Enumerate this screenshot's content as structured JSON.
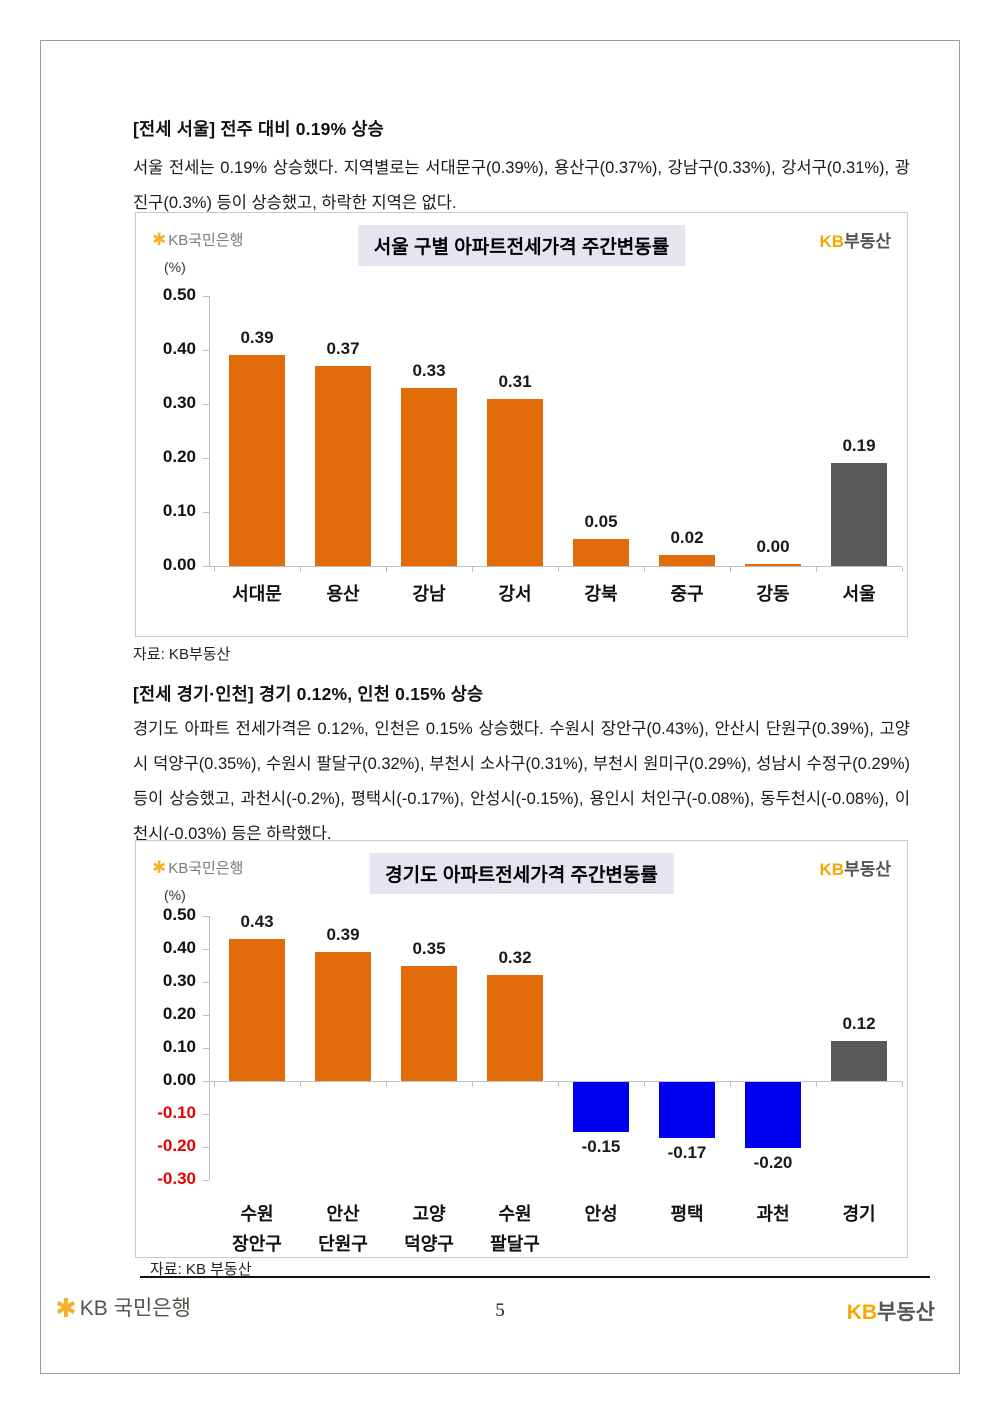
{
  "logos": {
    "star": "✱",
    "bank_name": "KB국민은행",
    "footer_bank_name": "KB 국민은행",
    "land_prefix": "KB",
    "land_suffix": "부동산"
  },
  "section1": {
    "heading": "[전세 서울] 전주 대비 0.19% 상승",
    "body": "서울 전세는 0.19% 상승했다. 지역별로는 서대문구(0.39%), 용산구(0.37%), 강남구(0.33%), 강서구(0.31%), 광진구(0.3%) 등이 상승했고, 하락한 지역은 없다."
  },
  "section2": {
    "heading": "[전세 경기·인천] 경기 0.12%, 인천 0.15% 상승",
    "body": "경기도 아파트 전세가격은 0.12%, 인천은 0.15% 상승했다. 수원시 장안구(0.43%), 안산시 단원구(0.39%), 고양시 덕양구(0.35%), 수원시 팔달구(0.32%), 부천시 소사구(0.31%), 부천시 원미구(0.29%), 성남시 수정구(0.29%) 등이 상승했고, 과천시(-0.2%), 평택시(-0.17%), 안성시(-0.15%), 용인시 처인구(-0.08%), 동두천시(-0.08%), 이천시(-0.03%) 등은 하락했다."
  },
  "chart_data": [
    {
      "type": "bar",
      "title": "서울 구별 아파트전세가격 주간변동률",
      "unit_label": "(%)",
      "categories": [
        [
          "서대문"
        ],
        [
          "용산"
        ],
        [
          "강남"
        ],
        [
          "강서"
        ],
        [
          "강북"
        ],
        [
          "중구"
        ],
        [
          "강동"
        ],
        [
          "서울"
        ]
      ],
      "values": [
        0.39,
        0.37,
        0.33,
        0.31,
        0.05,
        0.02,
        0.0,
        0.19
      ],
      "value_labels": [
        "0.39",
        "0.37",
        "0.33",
        "0.31",
        "0.05",
        "0.02",
        "0.00",
        "0.19"
      ],
      "bar_colors": [
        "#e36c0a",
        "#e36c0a",
        "#e36c0a",
        "#e36c0a",
        "#e36c0a",
        "#e36c0a",
        "#e36c0a",
        "#595959"
      ],
      "yticks": [
        "0.50",
        "0.40",
        "0.30",
        "0.20",
        "0.10",
        "0.00"
      ],
      "ylim": [
        0,
        0.5
      ],
      "grid": false,
      "legend": "none",
      "source_label": "자료: KB부동산"
    },
    {
      "type": "bar",
      "title": "경기도 아파트전세가격 주간변동률",
      "unit_label": "(%)",
      "categories": [
        [
          "수원",
          "장안구"
        ],
        [
          "안산",
          "단원구"
        ],
        [
          "고양",
          "덕양구"
        ],
        [
          "수원",
          "팔달구"
        ],
        [
          "안성"
        ],
        [
          "평택"
        ],
        [
          "과천"
        ],
        [
          "경기"
        ]
      ],
      "values": [
        0.43,
        0.39,
        0.35,
        0.32,
        -0.15,
        -0.17,
        -0.2,
        0.12
      ],
      "value_labels": [
        "0.43",
        "0.39",
        "0.35",
        "0.32",
        "-0.15",
        "-0.17",
        "-0.20",
        "0.12"
      ],
      "bar_colors": [
        "#e36c0a",
        "#e36c0a",
        "#e36c0a",
        "#e36c0a",
        "#0000f0",
        "#0000f0",
        "#0000f0",
        "#595959"
      ],
      "yticks": [
        "0.50",
        "0.40",
        "0.30",
        "0.20",
        "0.10",
        "0.00",
        "-0.10",
        "-0.20",
        "-0.30"
      ],
      "ylim": [
        -0.3,
        0.5
      ],
      "grid": false,
      "legend": "none",
      "source_label": "자료: KB 부동산"
    }
  ],
  "colors": {
    "bar_positive": "#e36c0a",
    "bar_negative": "#0000f0",
    "bar_total": "#595959",
    "negative_tick": "#e60000",
    "title_chip_bg": "#e5e4ef",
    "kb_gold": "#f7a600"
  },
  "footer": {
    "page_number": "5"
  }
}
